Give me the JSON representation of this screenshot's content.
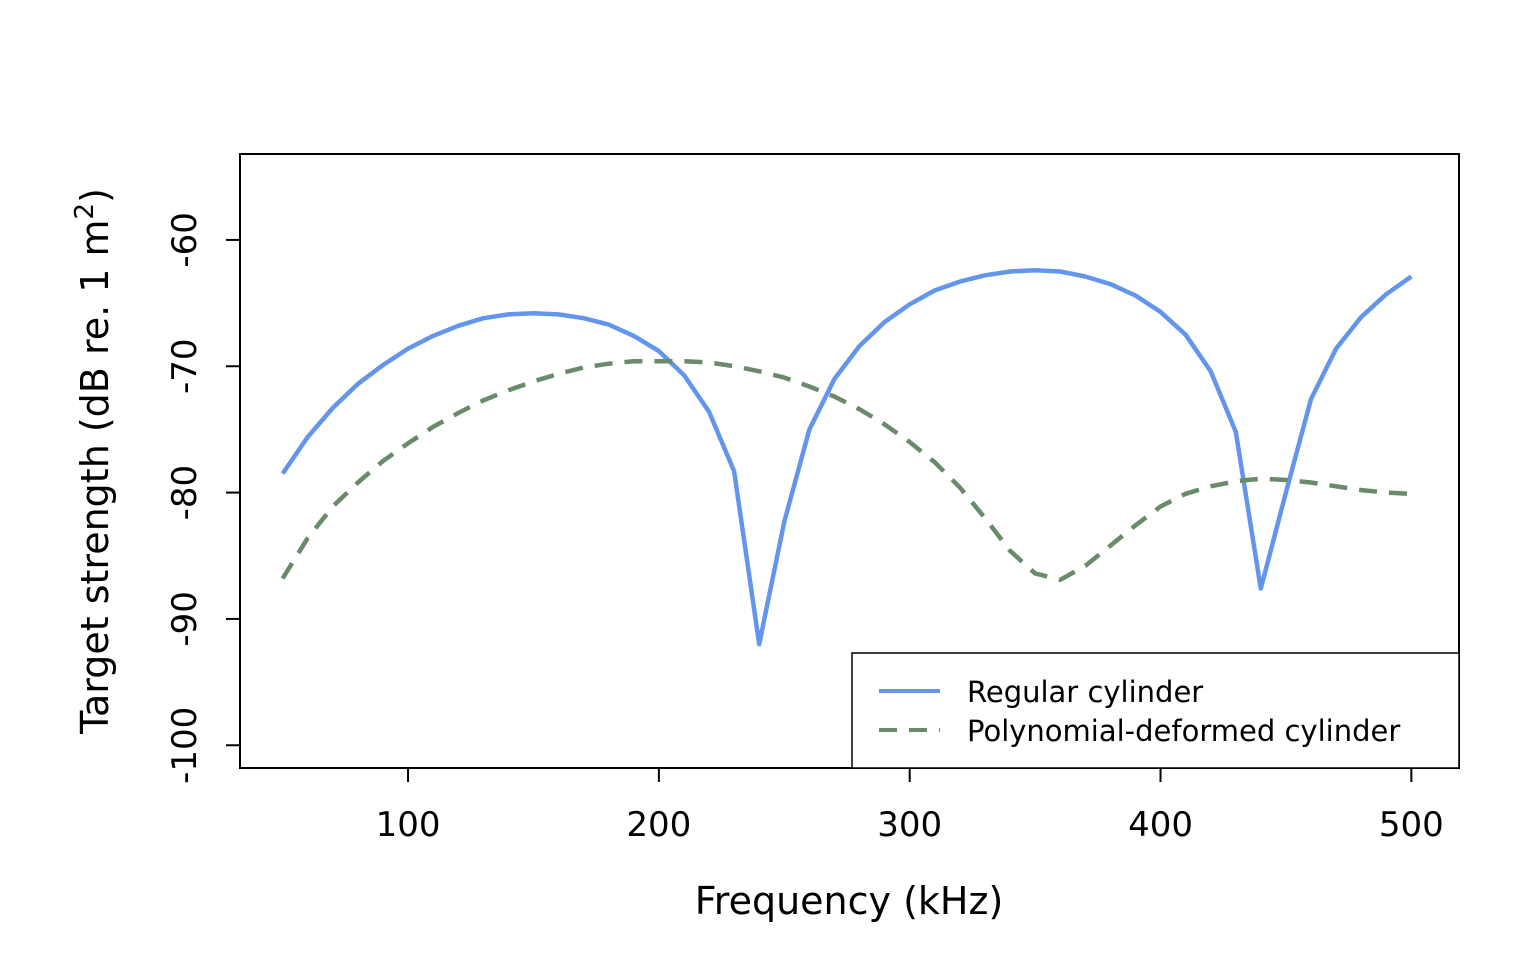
{
  "chart_data": {
    "type": "line",
    "xlabel": "Frequency (kHz)",
    "ylabel": "Target strength (dB re. 1 m",
    "ylabel_sup": "2",
    "ylabel_close": ")",
    "xlim": [
      33,
      519
    ],
    "ylim": [
      -101.8,
      -53.2
    ],
    "x_ticks": [
      100,
      200,
      300,
      400,
      500
    ],
    "x_tick_labels": [
      "100",
      "200",
      "300",
      "400",
      "500"
    ],
    "y_ticks": [
      -100,
      -90,
      -80,
      -70,
      -60
    ],
    "y_tick_labels": [
      "-100",
      "-90",
      "-80",
      "-70",
      "-60"
    ],
    "grid": false,
    "legend_position": "bottom-right",
    "series": [
      {
        "name": "Regular cylinder",
        "color": "#6495ED",
        "dash": "solid",
        "x": [
          50,
          60,
          70,
          80,
          90,
          100,
          110,
          120,
          130,
          140,
          150,
          160,
          170,
          180,
          190,
          200,
          210,
          220,
          230,
          240,
          250,
          260,
          270,
          280,
          290,
          300,
          310,
          320,
          330,
          340,
          350,
          360,
          370,
          380,
          390,
          400,
          410,
          420,
          430,
          440,
          450,
          460,
          470,
          480,
          490,
          500
        ],
        "y": [
          -78.5,
          -75.6,
          -73.3,
          -71.4,
          -69.9,
          -68.6,
          -67.6,
          -66.8,
          -66.2,
          -65.9,
          -65.8,
          -65.9,
          -66.2,
          -66.7,
          -67.6,
          -68.8,
          -70.7,
          -73.6,
          -78.3,
          -92.0,
          -82.3,
          -75.0,
          -71.0,
          -68.4,
          -66.5,
          -65.1,
          -64.0,
          -63.3,
          -62.8,
          -62.5,
          -62.4,
          -62.5,
          -62.9,
          -63.5,
          -64.4,
          -65.7,
          -67.5,
          -70.4,
          -75.2,
          -87.6,
          -80.0,
          -72.6,
          -68.6,
          -66.1,
          -64.3,
          -62.9
        ]
      },
      {
        "name": "Polynomial-deformed cylinder",
        "color": "#698B69",
        "dash": "dashed",
        "x": [
          50,
          60,
          70,
          80,
          90,
          100,
          110,
          120,
          130,
          140,
          150,
          160,
          170,
          180,
          190,
          200,
          210,
          220,
          230,
          240,
          250,
          260,
          270,
          280,
          290,
          300,
          310,
          320,
          330,
          340,
          350,
          360,
          370,
          380,
          390,
          400,
          410,
          420,
          430,
          440,
          450,
          460,
          470,
          480,
          490,
          500
        ],
        "y": [
          -86.8,
          -83.6,
          -81.1,
          -79.2,
          -77.5,
          -76.1,
          -74.8,
          -73.7,
          -72.7,
          -71.9,
          -71.2,
          -70.6,
          -70.1,
          -69.8,
          -69.6,
          -69.6,
          -69.6,
          -69.7,
          -70.0,
          -70.4,
          -70.9,
          -71.6,
          -72.4,
          -73.4,
          -74.6,
          -76.0,
          -77.6,
          -79.6,
          -82.0,
          -84.6,
          -86.4,
          -86.9,
          -85.8,
          -84.2,
          -82.6,
          -81.1,
          -80.1,
          -79.5,
          -79.1,
          -78.9,
          -79.0,
          -79.2,
          -79.5,
          -79.8,
          -80.0,
          -80.1
        ]
      }
    ]
  }
}
